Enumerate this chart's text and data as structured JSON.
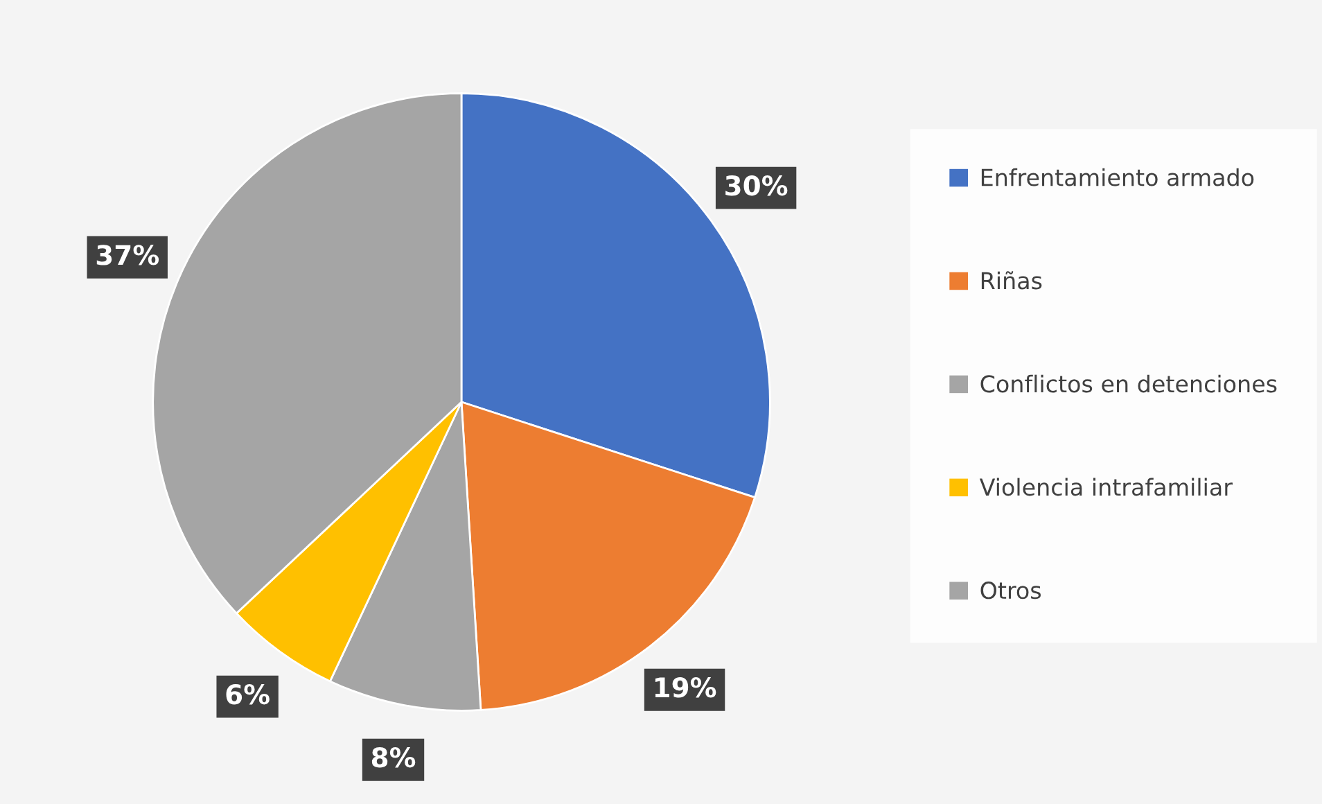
{
  "chart_data": {
    "type": "pie",
    "categories": [
      "Enfrentamiento armado",
      "Riñas",
      "Conflictos en detenciones",
      "Violencia intrafamiliar",
      "Otros"
    ],
    "values": [
      30,
      19,
      8,
      6,
      37
    ],
    "colors": [
      "#4472c4",
      "#ed7d31",
      "#a5a5a5",
      "#ffc000",
      "#a5a5a5"
    ],
    "value_labels": [
      "30%",
      "19%",
      "8%",
      "6%",
      "37%"
    ],
    "legend": "right"
  }
}
